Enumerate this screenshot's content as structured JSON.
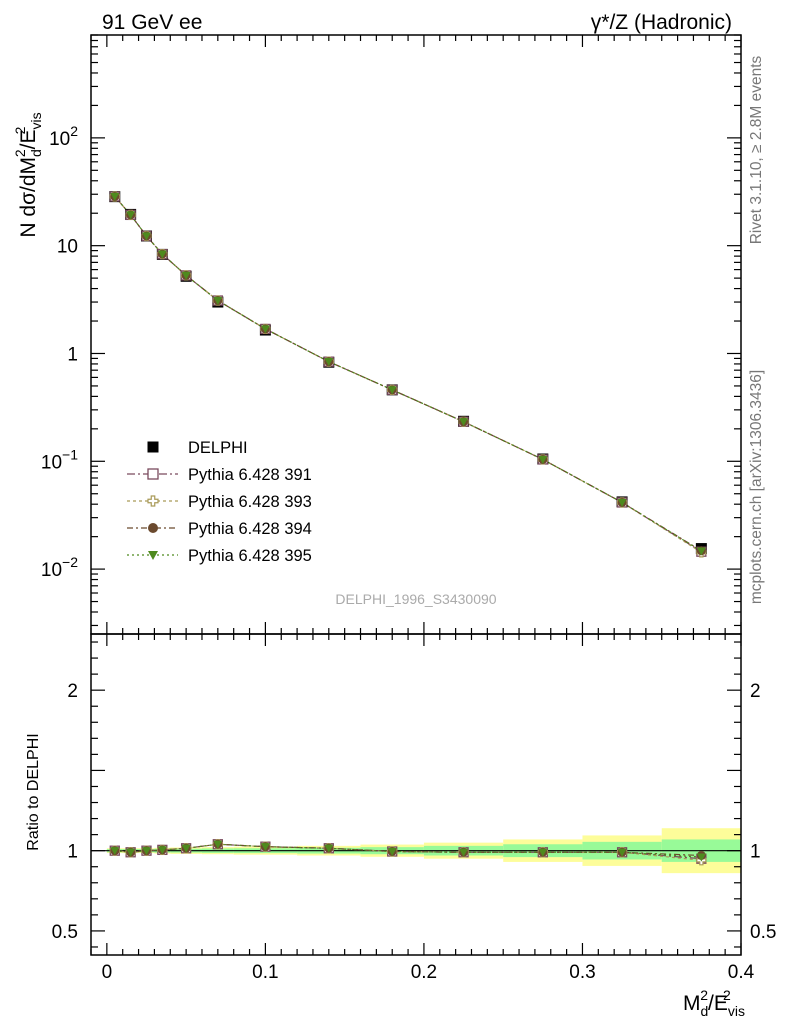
{
  "header": {
    "left": "91 GeV ee",
    "right_main": "γ*/Z (Hadronic)"
  },
  "side": {
    "rivet": "Rivet 3.1.10, ≥ 2.8M events",
    "mcplots": "mcplots.cern.ch [arXiv:1306.3436]"
  },
  "watermark": "DELPHI_1996_S3430090",
  "colors": {
    "data": "#000000",
    "p391": "#7a4a5e",
    "p393": "#a99a58",
    "p394": "#6b4a2e",
    "p395": "#4e8a1e",
    "band_inner": "#98fa98",
    "band_outer": "#fdfd9a"
  },
  "chart_data": [
    {
      "type": "scatter",
      "ylabel": "N dσ/dM_d^2/E_vis^2",
      "yscale": "log",
      "xlim": [
        -0.01,
        0.4
      ],
      "ylim": [
        0.0025,
        900
      ],
      "y_ticks": [
        {
          "v": 0.01,
          "label": "10",
          "exp": "−2"
        },
        {
          "v": 0.1,
          "label": "10",
          "exp": "−1"
        },
        {
          "v": 1,
          "label": "1",
          "exp": ""
        },
        {
          "v": 10,
          "label": "10",
          "exp": ""
        },
        {
          "v": 100,
          "label": "10",
          "exp": "2"
        }
      ],
      "x": [
        0.005,
        0.015,
        0.025,
        0.035,
        0.05,
        0.07,
        0.1,
        0.14,
        0.18,
        0.225,
        0.275,
        0.325,
        0.375
      ],
      "series": [
        {
          "name": "DELPHI",
          "key": "data",
          "marker": "square-filled",
          "values": [
            28.5,
            19.5,
            12.3,
            8.3,
            5.2,
            3.0,
            1.65,
            0.83,
            0.46,
            0.235,
            0.105,
            0.042,
            0.0155
          ]
        },
        {
          "name": "Pythia 6.428 391",
          "key": "p391",
          "marker": "square-open",
          "dash": "8,3,2,3",
          "values": [
            28.6,
            19.3,
            12.3,
            8.35,
            5.3,
            3.1,
            1.69,
            0.84,
            0.46,
            0.233,
            0.104,
            0.0415,
            0.0145
          ]
        },
        {
          "name": "Pythia 6.428 393",
          "key": "p393",
          "marker": "cross-open",
          "dash": "3,3",
          "values": [
            28.6,
            19.3,
            12.3,
            8.35,
            5.3,
            3.1,
            1.69,
            0.84,
            0.46,
            0.233,
            0.104,
            0.0415,
            0.0143
          ]
        },
        {
          "name": "Pythia 6.428 394",
          "key": "p394",
          "marker": "circle-filled",
          "dash": "6,3,2,3",
          "values": [
            28.6,
            19.3,
            12.3,
            8.35,
            5.3,
            3.1,
            1.69,
            0.84,
            0.46,
            0.233,
            0.104,
            0.0415,
            0.0148
          ]
        },
        {
          "name": "Pythia 6.428 395",
          "key": "p395",
          "marker": "triangle-down-filled",
          "dash": "2,3",
          "values": [
            28.6,
            19.3,
            12.3,
            8.35,
            5.3,
            3.1,
            1.69,
            0.84,
            0.46,
            0.233,
            0.104,
            0.0415,
            0.0147
          ]
        }
      ],
      "legend_position": "middle-left"
    },
    {
      "type": "scatter",
      "ylabel": "Ratio to DELPHI",
      "xlabel": "M_d^2/E_vis^2",
      "xlim": [
        -0.01,
        0.4
      ],
      "ylim": [
        0.35,
        2.35
      ],
      "y_ticks": [
        {
          "v": 0.5,
          "label": "0.5"
        },
        {
          "v": 1,
          "label": "1"
        },
        {
          "v": 2,
          "label": "2"
        }
      ],
      "x_ticks": [
        {
          "v": 0,
          "label": "0"
        },
        {
          "v": 0.1,
          "label": "0.1"
        },
        {
          "v": 0.2,
          "label": "0.2"
        },
        {
          "v": 0.3,
          "label": "0.3"
        },
        {
          "v": 0.4,
          "label": "0.4"
        }
      ],
      "bins": [
        {
          "lo": 0.0,
          "hi": 0.01,
          "inner": 0.01,
          "outer": 0.015
        },
        {
          "lo": 0.01,
          "hi": 0.02,
          "inner": 0.01,
          "outer": 0.015
        },
        {
          "lo": 0.02,
          "hi": 0.03,
          "inner": 0.01,
          "outer": 0.015
        },
        {
          "lo": 0.03,
          "hi": 0.04,
          "inner": 0.012,
          "outer": 0.018
        },
        {
          "lo": 0.04,
          "hi": 0.06,
          "inner": 0.012,
          "outer": 0.02
        },
        {
          "lo": 0.06,
          "hi": 0.08,
          "inner": 0.014,
          "outer": 0.022
        },
        {
          "lo": 0.08,
          "hi": 0.12,
          "inner": 0.015,
          "outer": 0.025
        },
        {
          "lo": 0.12,
          "hi": 0.16,
          "inner": 0.018,
          "outer": 0.03
        },
        {
          "lo": 0.16,
          "hi": 0.2,
          "inner": 0.022,
          "outer": 0.038
        },
        {
          "lo": 0.2,
          "hi": 0.25,
          "inner": 0.03,
          "outer": 0.05
        },
        {
          "lo": 0.25,
          "hi": 0.3,
          "inner": 0.04,
          "outer": 0.07
        },
        {
          "lo": 0.3,
          "hi": 0.35,
          "inner": 0.055,
          "outer": 0.095
        },
        {
          "lo": 0.35,
          "hi": 0.4,
          "inner": 0.07,
          "outer": 0.14
        }
      ],
      "series": [
        {
          "name": "Pythia 6.428 391",
          "key": "p391",
          "values": [
            1.0,
            0.99,
            1.0,
            1.005,
            1.015,
            1.04,
            1.025,
            1.015,
            0.995,
            0.99,
            0.99,
            0.99,
            0.95
          ]
        },
        {
          "name": "Pythia 6.428 393",
          "key": "p393",
          "values": [
            1.0,
            0.99,
            1.0,
            1.005,
            1.015,
            1.04,
            1.025,
            1.015,
            0.995,
            0.99,
            0.99,
            0.99,
            0.94
          ]
        },
        {
          "name": "Pythia 6.428 394",
          "key": "p394",
          "values": [
            1.0,
            0.99,
            1.0,
            1.005,
            1.015,
            1.04,
            1.025,
            1.015,
            0.995,
            0.99,
            0.99,
            0.99,
            0.97
          ]
        },
        {
          "name": "Pythia 6.428 395",
          "key": "p395",
          "values": [
            1.0,
            0.99,
            1.0,
            1.005,
            1.015,
            1.04,
            1.025,
            1.015,
            0.995,
            0.99,
            0.99,
            0.99,
            0.96
          ]
        }
      ]
    }
  ]
}
